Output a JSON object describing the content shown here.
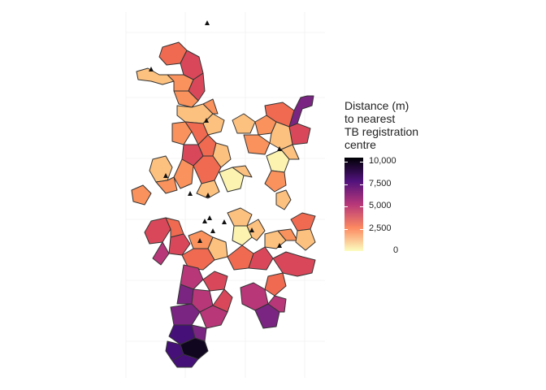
{
  "map": {
    "legend": {
      "title": "Distance (m)\nto nearest\nTB registration\ncentre",
      "ticks": [
        {
          "label": "10,000",
          "value": 10000
        },
        {
          "label": "7,500",
          "value": 7500
        },
        {
          "label": "5,000",
          "value": 5000
        },
        {
          "label": "2,500",
          "value": 2500
        },
        {
          "label": "0",
          "value": 0
        }
      ],
      "scale_min": 0,
      "scale_max": 10500,
      "colormap": "magma (reversed)"
    },
    "colors": {
      "pale": "#fcf3b0",
      "light_orange": "#fdc17f",
      "orange": "#f9925c",
      "coral": "#ef6a50",
      "red": "#d9485a",
      "magenta": "#b73779",
      "purple": "#7a2582",
      "deep_purple": "#451077",
      "dark": "#10061f",
      "outline": "#333333",
      "marker": "#111111"
    },
    "marker_symbol": "triangle",
    "marker_meaning": "TB registration centre"
  }
}
